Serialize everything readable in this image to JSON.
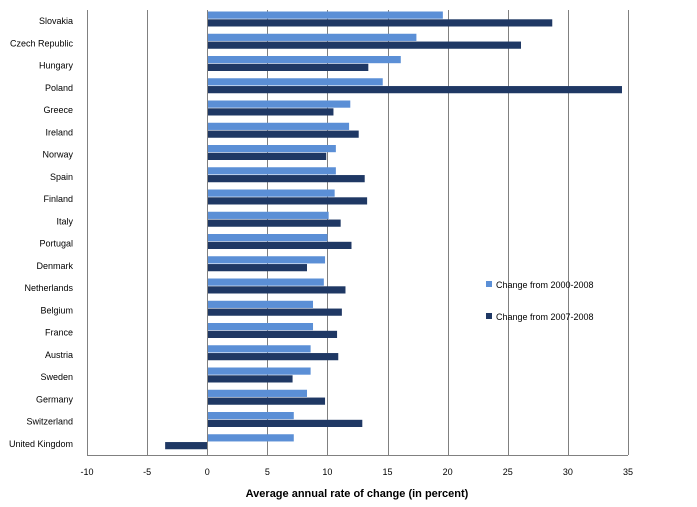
{
  "chart_data": {
    "type": "bar",
    "orientation": "horizontal",
    "xlabel": "Average annual rate of change (in percent)",
    "xlim": [
      -10,
      35
    ],
    "xticks": [
      -10,
      -5,
      0,
      5,
      10,
      15,
      20,
      25,
      30,
      35
    ],
    "grid": "vertical",
    "legend_position": "right",
    "categories": [
      "Slovakia",
      "Czech Republic",
      "Hungary",
      "Poland",
      "Greece",
      "Ireland",
      "Norway",
      "Spain",
      "Finland",
      "Italy",
      "Portugal",
      "Denmark",
      "Netherlands",
      "Belgium",
      "France",
      "Austria",
      "Sweden",
      "Germany",
      "Switzerland",
      "United Kingdom"
    ],
    "series": [
      {
        "name": "Change from 2000-2008",
        "color": "#5B8FD6",
        "values": [
          19.6,
          17.4,
          16.1,
          14.6,
          11.9,
          11.8,
          10.7,
          10.7,
          10.6,
          10.1,
          10.0,
          9.8,
          9.7,
          8.8,
          8.8,
          8.6,
          8.6,
          8.3,
          7.2,
          7.2
        ]
      },
      {
        "name": "Change from 2007-2008",
        "color": "#1F3864",
        "values": [
          28.7,
          26.1,
          13.4,
          34.5,
          10.5,
          12.6,
          9.9,
          13.1,
          13.3,
          11.1,
          12.0,
          8.3,
          11.5,
          11.2,
          10.8,
          10.9,
          7.1,
          9.8,
          12.9,
          -3.5
        ]
      }
    ]
  }
}
